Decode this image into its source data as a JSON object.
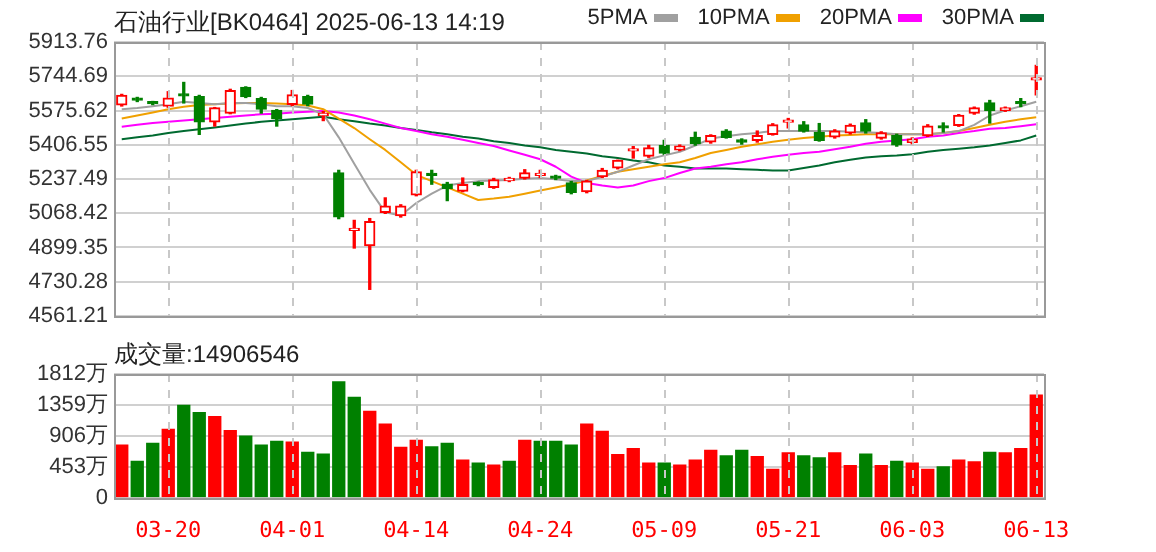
{
  "chart_data": [
    {
      "type": "candlestick",
      "title": "石油行业[BK0464] 2025-06-13 14:19",
      "categories": [
        null,
        null,
        null,
        null,
        null,
        null,
        null,
        null,
        null,
        null,
        null,
        null,
        null,
        null,
        null,
        null,
        null,
        null,
        null,
        null,
        null,
        null,
        null,
        null,
        null,
        null,
        null,
        null,
        null,
        null,
        null,
        null,
        null,
        null,
        null,
        null,
        null,
        null,
        null,
        null,
        null,
        null,
        null,
        null,
        null,
        null,
        null,
        null,
        null,
        null,
        null,
        null,
        null,
        null,
        null,
        null,
        null,
        null,
        null,
        null
      ],
      "ohlc": [
        [
          5603,
          5655,
          5598,
          5650
        ],
        [
          5630,
          5640,
          5620,
          5627
        ],
        [
          5615,
          5620,
          5605,
          5610
        ],
        [
          5597,
          5668,
          5592,
          5637
        ],
        [
          5652,
          5714,
          5613,
          5648
        ],
        [
          5644,
          5650,
          5458,
          5520
        ],
        [
          5520,
          5590,
          5499,
          5588
        ],
        [
          5563,
          5680,
          5560,
          5674
        ],
        [
          5690,
          5692,
          5640,
          5644
        ],
        [
          5634,
          5640,
          5563,
          5582
        ],
        [
          5576,
          5580,
          5499,
          5536
        ],
        [
          5606,
          5674,
          5600,
          5653
        ],
        [
          5644,
          5650,
          5600,
          5607
        ],
        [
          5551,
          5570,
          5526,
          5556
        ],
        [
          5267,
          5280,
          5042,
          5051
        ],
        [
          4984,
          5033,
          4897,
          4987
        ],
        [
          4909,
          5042,
          4693,
          5027
        ],
        [
          5073,
          5144,
          5068,
          5104
        ],
        [
          5057,
          5110,
          5050,
          5104
        ],
        [
          5159,
          5280,
          5155,
          5273
        ],
        [
          5262,
          5280,
          5212,
          5255
        ],
        [
          5212,
          5220,
          5131,
          5190
        ],
        [
          5178,
          5242,
          5175,
          5209
        ],
        [
          5214,
          5222,
          5205,
          5210
        ],
        [
          5196,
          5240,
          5192,
          5233
        ],
        [
          5230,
          5245,
          5225,
          5234
        ],
        [
          5242,
          5283,
          5238,
          5267
        ],
        [
          5255,
          5280,
          5245,
          5258
        ],
        [
          5245,
          5255,
          5235,
          5242
        ],
        [
          5218,
          5225,
          5165,
          5172
        ],
        [
          5175,
          5230,
          5170,
          5227
        ],
        [
          5249,
          5289,
          5245,
          5280
        ],
        [
          5292,
          5330,
          5288,
          5329
        ],
        [
          5376,
          5397,
          5341,
          5380
        ],
        [
          5350,
          5403,
          5345,
          5391
        ],
        [
          5403,
          5428,
          5360,
          5366
        ],
        [
          5381,
          5405,
          5378,
          5400
        ],
        [
          5443,
          5468,
          5405,
          5412
        ],
        [
          5421,
          5455,
          5415,
          5452
        ],
        [
          5474,
          5480,
          5440,
          5443
        ],
        [
          5424,
          5435,
          5410,
          5420
        ],
        [
          5428,
          5474,
          5420,
          5452
        ],
        [
          5458,
          5510,
          5455,
          5505
        ],
        [
          5518,
          5536,
          5490,
          5521
        ],
        [
          5505,
          5520,
          5470,
          5474
        ],
        [
          5468,
          5511,
          5425,
          5428
        ],
        [
          5446,
          5480,
          5440,
          5474
        ],
        [
          5465,
          5508,
          5460,
          5502
        ],
        [
          5514,
          5530,
          5465,
          5474
        ],
        [
          5440,
          5470,
          5435,
          5465
        ],
        [
          5452,
          5458,
          5400,
          5406
        ],
        [
          5418,
          5440,
          5412,
          5434
        ],
        [
          5452,
          5505,
          5448,
          5498
        ],
        [
          5494,
          5514,
          5470,
          5490
        ],
        [
          5502,
          5555,
          5498,
          5551
        ],
        [
          5563,
          5592,
          5558,
          5588
        ],
        [
          5613,
          5625,
          5514,
          5576
        ],
        [
          5576,
          5592,
          5572,
          5588
        ],
        [
          5614,
          5634,
          5595,
          5610
        ],
        [
          5727,
          5798,
          5653,
          5736
        ]
      ],
      "series": [
        {
          "type": "line",
          "name": "5PMA",
          "color": "#a0a0a0",
          "values": [
            5582,
            5588,
            5597,
            5606,
            5619,
            5613,
            5606,
            5613,
            5613,
            5606,
            5597,
            5597,
            5588,
            5557,
            5443,
            5313,
            5184,
            5073,
            5057,
            5119,
            5165,
            5205,
            5218,
            5227,
            5230,
            5233,
            5239,
            5242,
            5236,
            5227,
            5227,
            5249,
            5273,
            5304,
            5335,
            5354,
            5372,
            5403,
            5437,
            5449,
            5458,
            5465,
            5474,
            5474,
            5474,
            5474,
            5474,
            5471,
            5468,
            5465,
            5458,
            5458,
            5458,
            5465,
            5474,
            5505,
            5551,
            5576,
            5597,
            5619
          ]
        },
        {
          "type": "line",
          "name": "10PMA",
          "color": "#f0a000",
          "values": [
            5536,
            5551,
            5566,
            5582,
            5594,
            5603,
            5606,
            5610,
            5613,
            5613,
            5610,
            5606,
            5600,
            5582,
            5536,
            5489,
            5434,
            5381,
            5320,
            5258,
            5227,
            5196,
            5165,
            5134,
            5141,
            5150,
            5165,
            5181,
            5196,
            5212,
            5230,
            5252,
            5273,
            5286,
            5298,
            5310,
            5320,
            5341,
            5366,
            5381,
            5397,
            5409,
            5421,
            5431,
            5440,
            5446,
            5452,
            5455,
            5458,
            5458,
            5458,
            5458,
            5458,
            5465,
            5474,
            5489,
            5505,
            5520,
            5532,
            5542
          ]
        },
        {
          "type": "line",
          "name": "20PMA",
          "color": "#ff00ff",
          "values": [
            5495,
            5505,
            5514,
            5520,
            5526,
            5532,
            5539,
            5545,
            5551,
            5557,
            5560,
            5566,
            5569,
            5573,
            5566,
            5551,
            5532,
            5511,
            5489,
            5474,
            5458,
            5446,
            5431,
            5415,
            5400,
            5378,
            5357,
            5335,
            5298,
            5249,
            5218,
            5205,
            5196,
            5205,
            5227,
            5242,
            5267,
            5289,
            5298,
            5310,
            5320,
            5335,
            5347,
            5357,
            5366,
            5372,
            5384,
            5397,
            5412,
            5421,
            5428,
            5434,
            5446,
            5452,
            5465,
            5474,
            5486,
            5489,
            5498,
            5508
          ]
        },
        {
          "type": "line",
          "name": "30PMA",
          "color": "#006a30",
          "values": [
            5434,
            5443,
            5452,
            5465,
            5474,
            5483,
            5492,
            5502,
            5511,
            5520,
            5526,
            5532,
            5539,
            5545,
            5532,
            5523,
            5511,
            5502,
            5489,
            5480,
            5468,
            5458,
            5446,
            5437,
            5424,
            5415,
            5403,
            5394,
            5381,
            5372,
            5363,
            5350,
            5341,
            5329,
            5320,
            5304,
            5298,
            5289,
            5289,
            5289,
            5286,
            5283,
            5279,
            5279,
            5292,
            5304,
            5320,
            5332,
            5344,
            5350,
            5354,
            5360,
            5372,
            5381,
            5387,
            5394,
            5403,
            5415,
            5428,
            5452
          ]
        }
      ],
      "ylim": [
        4561.21,
        5913.76
      ],
      "yticks": [
        4561.21,
        4730.28,
        4899.35,
        5068.42,
        5237.49,
        5406.55,
        5575.62,
        5744.69,
        5913.76
      ],
      "grid": true,
      "legend": "top right",
      "tick_labels": "y"
    },
    {
      "type": "bar",
      "title": "成交量:14906546",
      "categories": [
        null,
        null,
        null,
        "03-20",
        null,
        null,
        null,
        null,
        null,
        null,
        null,
        "04-01",
        null,
        null,
        null,
        null,
        null,
        null,
        null,
        "04-14",
        null,
        null,
        null,
        null,
        null,
        null,
        null,
        "04-24",
        null,
        null,
        null,
        null,
        null,
        null,
        null,
        "05-09",
        null,
        null,
        null,
        null,
        null,
        null,
        null,
        "05-21",
        null,
        null,
        null,
        null,
        null,
        null,
        null,
        "06-03",
        null,
        null,
        null,
        null,
        null,
        null,
        null,
        "06-13"
      ],
      "values": [
        769,
        530,
        796,
        999,
        1352,
        1246,
        1185,
        981,
        902,
        769,
        822,
        813,
        663,
        636,
        1697,
        1467,
        1264,
        1078,
        734,
        840,
        743,
        796,
        548,
        504,
        477,
        530,
        840,
        822,
        822,
        769,
        1078,
        972,
        628,
        716,
        504,
        504,
        477,
        548,
        690,
        610,
        690,
        601,
        415,
        654,
        610,
        583,
        654,
        469,
        636,
        469,
        530,
        504,
        415,
        451,
        548,
        522,
        663,
        654,
        716,
        1503
      ],
      "colors": [
        "#ff0000",
        "#008000",
        "#008000",
        "#ff0000",
        "#008000",
        "#008000",
        "#ff0000",
        "#ff0000",
        "#008000",
        "#008000",
        "#008000",
        "#ff0000",
        "#008000",
        "#008000",
        "#008000",
        "#008000",
        "#ff0000",
        "#ff0000",
        "#ff0000",
        "#ff0000",
        "#008000",
        "#008000",
        "#ff0000",
        "#008000",
        "#ff0000",
        "#008000",
        "#ff0000",
        "#008000",
        "#008000",
        "#008000",
        "#ff0000",
        "#ff0000",
        "#ff0000",
        "#ff0000",
        "#ff0000",
        "#008000",
        "#ff0000",
        "#ff0000",
        "#ff0000",
        "#008000",
        "#008000",
        "#ff0000",
        "#ff0000",
        "#ff0000",
        "#008000",
        "#008000",
        "#ff0000",
        "#ff0000",
        "#008000",
        "#ff0000",
        "#008000",
        "#ff0000",
        "#ff0000",
        "#008000",
        "#ff0000",
        "#ff0000",
        "#008000",
        "#ff0000",
        "#ff0000",
        "#ff0000"
      ],
      "ylim": [
        0,
        1812
      ],
      "yticks": [
        0,
        {
          "value": 453,
          "label": "453万"
        },
        {
          "value": 906,
          "label": "906万"
        },
        {
          "value": 1359,
          "label": "1359万"
        },
        {
          "value": 1812,
          "label": "1812万"
        }
      ],
      "grid": true
    }
  ]
}
